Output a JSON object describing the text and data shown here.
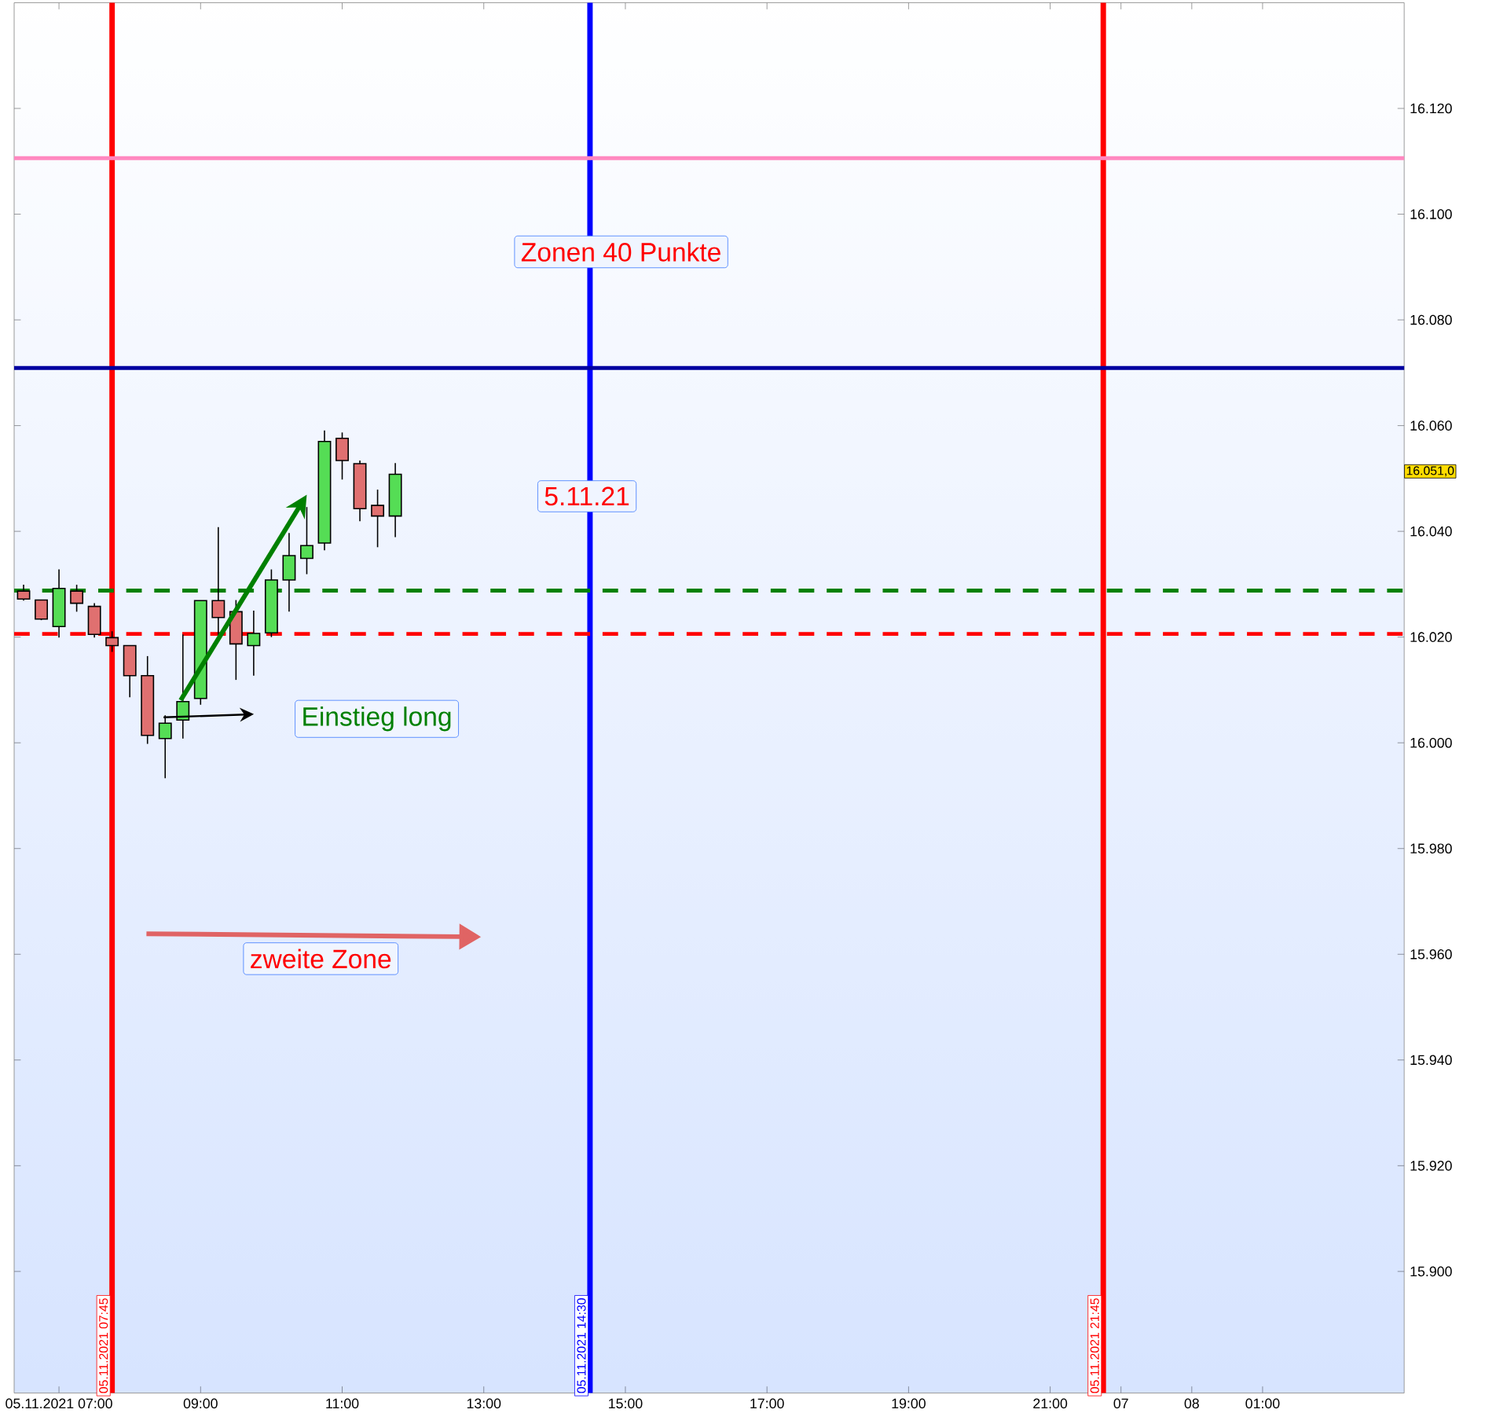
{
  "chart_data": {
    "type": "candlestick",
    "x": [
      "2021-11-05T06:30",
      "2021-11-05T06:45",
      "2021-11-05T07:00",
      "2021-11-05T07:15",
      "2021-11-05T07:30",
      "2021-11-05T07:45",
      "2021-11-05T08:00",
      "2021-11-05T08:15",
      "2021-11-05T08:30",
      "2021-11-05T08:45",
      "2021-11-05T09:00",
      "2021-11-05T09:15",
      "2021-11-05T09:30",
      "2021-11-05T09:45",
      "2021-11-05T10:00",
      "2021-11-05T10:15",
      "2021-11-05T10:30",
      "2021-11-05T10:45",
      "2021-11-05T11:00",
      "2021-11-05T11:15",
      "2021-11-05T11:30",
      "2021-11-05T11:45"
    ],
    "ohlc": [
      [
        16028.7,
        16029.9,
        16026.9,
        16027.2
      ],
      [
        16027.0,
        16027.0,
        16023.2,
        16023.4
      ],
      [
        16022.0,
        16032.8,
        16019.9,
        16029.2
      ],
      [
        16028.7,
        16029.9,
        16024.8,
        16026.4
      ],
      [
        16025.8,
        16026.4,
        16019.9,
        16020.5
      ],
      [
        16019.9,
        16021.1,
        16017.2,
        16018.4
      ],
      [
        16018.4,
        16018.4,
        16008.6,
        16012.7
      ],
      [
        16012.7,
        16016.4,
        15999.8,
        16001.4
      ],
      [
        16000.8,
        16005.2,
        15993.3,
        16003.7
      ],
      [
        16004.3,
        16020.5,
        16000.8,
        16007.8
      ],
      [
        16008.4,
        16026.9,
        16007.2,
        16026.9
      ],
      [
        16026.9,
        16040.8,
        16020.1,
        16023.7
      ],
      [
        16024.8,
        16027.0,
        16011.9,
        16018.7
      ],
      [
        16018.4,
        16025.0,
        16012.7,
        16020.7
      ],
      [
        16020.8,
        16032.8,
        16020.0,
        16030.8
      ],
      [
        16030.8,
        16039.7,
        16024.8,
        16035.4
      ],
      [
        16034.9,
        16044.6,
        16031.9,
        16037.3
      ],
      [
        16037.8,
        16059.1,
        16036.4,
        16057.0
      ],
      [
        16057.6,
        16058.7,
        16049.8,
        16053.4
      ],
      [
        16052.8,
        16053.4,
        16041.9,
        16044.3
      ],
      [
        16044.9,
        16047.9,
        16037.0,
        16042.9
      ],
      [
        16042.9,
        16052.9,
        16038.9,
        16050.8
      ]
    ],
    "colors": [
      "#e07070",
      "#e07070",
      "#55dd55",
      "#e07070",
      "#e07070",
      "#e07070",
      "#e07070",
      "#e07070",
      "#55dd55",
      "#55dd55",
      "#55dd55",
      "#e07070",
      "#e07070",
      "#55dd55",
      "#55dd55",
      "#55dd55",
      "#55dd55",
      "#55dd55",
      "#e07070",
      "#e07070",
      "#e07070",
      "#55dd55"
    ],
    "xlim": [
      "2021-11-05T06:22",
      "2021-11-06T02:00"
    ],
    "xticks": [
      {
        "value": "2021-11-05T07:00",
        "label": "05.11.2021 07:00"
      },
      {
        "value": "2021-11-05T09:00",
        "label": "09:00"
      },
      {
        "value": "2021-11-05T11:00",
        "label": "11:00"
      },
      {
        "value": "2021-11-05T13:00",
        "label": "13:00"
      },
      {
        "value": "2021-11-05T15:00",
        "label": "15:00"
      },
      {
        "value": "2021-11-05T17:00",
        "label": "17:00"
      },
      {
        "value": "2021-11-05T19:00",
        "label": "19:00"
      },
      {
        "value": "2021-11-05T21:00",
        "label": "21:00"
      },
      {
        "value": "2021-11-05T22:00",
        "label": "07"
      },
      {
        "value": "2021-11-05T23:00",
        "label": "08"
      },
      {
        "value": "2021-11-06T00:00",
        "label": "01:00"
      }
    ],
    "ylim": [
      15877,
      16140
    ],
    "yticks": [
      {
        "value": 15900,
        "label": "15.900"
      },
      {
        "value": 15920,
        "label": "15.920"
      },
      {
        "value": 15940,
        "label": "15.940"
      },
      {
        "value": 15960,
        "label": "15.960"
      },
      {
        "value": 15980,
        "label": "15.980"
      },
      {
        "value": 16000,
        "label": "16.000"
      },
      {
        "value": 16020,
        "label": "16.020"
      },
      {
        "value": 16040,
        "label": "16.040"
      },
      {
        "value": 16060,
        "label": "16.060"
      },
      {
        "value": 16080,
        "label": "16.080"
      },
      {
        "value": 16100,
        "label": "16.100"
      },
      {
        "value": 16120,
        "label": "16.120"
      }
    ],
    "ref_lines": [
      {
        "axis": "x",
        "value": "2021-11-05T07:45",
        "label": "05.11.2021 07:45",
        "color": "#ff0000"
      },
      {
        "axis": "x",
        "value": "2021-11-05T14:30",
        "label": "05.11.2021 14:30",
        "color": "#0000ff"
      },
      {
        "axis": "x",
        "value": "2021-11-05T21:45",
        "label": "05.11.2021 21:45",
        "color": "#ff0000"
      },
      {
        "axis": "y",
        "value": 16110.6,
        "color": "#ff88c0"
      },
      {
        "axis": "y",
        "value": 16070.9,
        "color": "#0000a0"
      },
      {
        "axis": "y",
        "value": 16028.8,
        "color": "#008000",
        "line_style": "dashed"
      },
      {
        "axis": "y",
        "value": 16020.6,
        "color": "#ff0000",
        "line_style": "dashed"
      }
    ],
    "annotations": [
      "Zonen 40 Punkte",
      "5.11.21",
      "Einstieg long",
      "zweite Zone",
      "16.051,0"
    ]
  }
}
